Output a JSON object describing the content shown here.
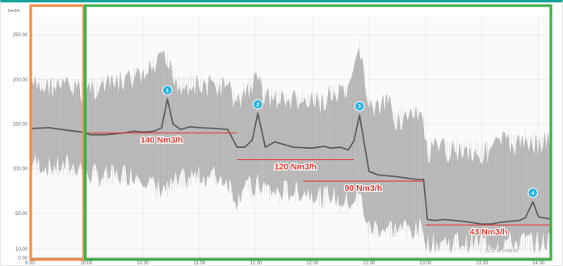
{
  "chart_data": {
    "type": "line",
    "title": "",
    "xlabel": "",
    "ylabel": "Nm3/h",
    "x_tick_labels": [
      "9:30",
      "10:00",
      "10:30",
      "11:00",
      "11:30",
      "12:00",
      "12:30",
      "13:00",
      "13:30",
      "14:00"
    ],
    "y_tick_labels": [
      "0.00",
      "10.00",
      "50.00",
      "100.00",
      "150.00",
      "200.00",
      "250.00"
    ],
    "y_ticks": [
      0,
      10,
      50,
      100,
      150,
      200,
      250
    ],
    "ylim": [
      0,
      270
    ],
    "xlim": [
      "9:30",
      "14:07"
    ],
    "grid": true,
    "legend": "none",
    "timestamp_text": "23.11.16 14:06:13",
    "series": [
      {
        "color": "#5e5e5e",
        "x": [
          "9:30",
          "9:40",
          "9:50",
          "9:58",
          "10:02",
          "10:10",
          "10:20",
          "10:25",
          "10:30",
          "10:36",
          "10:40",
          "10:43",
          "10:46",
          "10:50",
          "10:55",
          "11:00",
          "11:10",
          "11:15",
          "11:20",
          "11:24",
          "11:28",
          "11:31",
          "11:35",
          "11:40",
          "11:50",
          "12:00",
          "12:06",
          "12:10",
          "12:15",
          "12:19",
          "12:22",
          "12:25",
          "12:30",
          "12:35",
          "12:40",
          "12:45",
          "12:55",
          "12:59",
          "13:01",
          "13:05",
          "13:10",
          "13:20",
          "13:30",
          "13:35",
          "13:40",
          "13:45",
          "13:50",
          "13:53",
          "13:57",
          "14:00",
          "14:05",
          "14:07"
        ],
        "values": [
          145,
          146,
          143,
          141,
          138,
          138,
          140,
          142,
          141,
          142,
          146,
          178,
          150,
          144,
          147,
          146,
          145,
          144,
          124,
          124,
          132,
          162,
          124,
          130,
          124,
          123,
          125,
          123,
          124,
          121,
          131,
          160,
          97,
          93,
          92,
          91,
          88,
          88,
          43,
          42,
          43,
          41,
          38,
          38,
          40,
          41,
          42,
          45,
          63,
          46,
          44,
          43
        ],
        "band_upper": [
          205,
          205,
          205,
          200,
          205,
          205,
          210,
          215,
          215,
          225,
          235,
          230,
          220,
          205,
          210,
          205,
          205,
          205,
          185,
          200,
          205,
          215,
          195,
          190,
          190,
          185,
          190,
          195,
          195,
          195,
          215,
          255,
          180,
          180,
          185,
          170,
          170,
          170,
          125,
          135,
          135,
          135,
          130,
          135,
          145,
          140,
          140,
          145,
          145,
          140,
          145,
          140
        ],
        "band_lower": [
          95,
          90,
          90,
          90,
          80,
          78,
          80,
          82,
          80,
          65,
          68,
          64,
          70,
          72,
          78,
          80,
          78,
          75,
          52,
          75,
          60,
          70,
          65,
          60,
          62,
          62,
          55,
          60,
          50,
          50,
          52,
          58,
          20,
          22,
          20,
          22,
          18,
          20,
          5,
          5,
          5,
          5,
          5,
          5,
          5,
          5,
          5,
          5,
          5,
          5,
          5,
          5
        ]
      }
    ],
    "markers": [
      {
        "label": "1",
        "x": "10:43",
        "y": 178,
        "color": "#2bb3e0"
      },
      {
        "label": "2",
        "x": "11:31",
        "y": 162,
        "color": "#2bb3e0"
      },
      {
        "label": "3",
        "x": "12:25",
        "y": 160,
        "color": "#2bb3e0"
      },
      {
        "label": "4",
        "x": "13:57",
        "y": 63,
        "color": "#2bb3e0"
      }
    ],
    "annotations": [
      {
        "text": "140 Nm3/h",
        "value": 140,
        "x_start": "10:00",
        "x_end": "11:20",
        "color": "#e23b36"
      },
      {
        "text": "120 Nm3/h",
        "value": 110,
        "x_start": "11:20",
        "x_end": "12:22",
        "color": "#e23b36"
      },
      {
        "text": "90 Nm3/h",
        "value": 86,
        "x_start": "11:55",
        "x_end": "12:59",
        "color": "#e23b36"
      },
      {
        "text": "43 Nm3/h",
        "value": 37,
        "x_start": "13:00",
        "x_end": "14:07",
        "color": "#e23b36"
      }
    ],
    "highlight_boxes": [
      {
        "name": "before",
        "x_start": "9:30",
        "x_end": "9:59",
        "color": "#f28c4a"
      },
      {
        "name": "after",
        "x_start": "9:59",
        "x_end": "14:07",
        "color": "#3fae49"
      }
    ]
  }
}
